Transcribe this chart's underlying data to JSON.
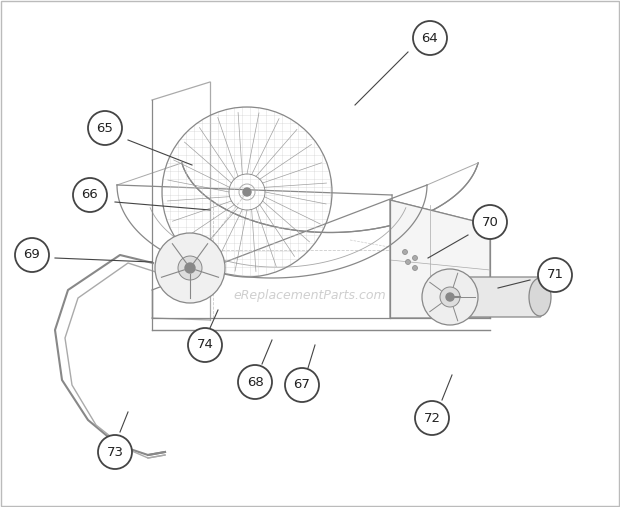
{
  "background_color": "#ffffff",
  "border_color": "#bbbbbb",
  "watermark_text": "eReplacementParts.com",
  "watermark_color": "#bbbbbb",
  "watermark_fontsize": 9,
  "circle_facecolor": "#ffffff",
  "circle_edgecolor": "#444444",
  "circle_linewidth": 1.3,
  "line_color": "#444444",
  "line_linewidth": 0.8,
  "text_color": "#222222",
  "text_fontsize": 9.5,
  "figsize": [
    6.2,
    5.07
  ],
  "dpi": 100,
  "draw_color": "#888888",
  "draw_color2": "#aaaaaa",
  "draw_color3": "#cccccc"
}
